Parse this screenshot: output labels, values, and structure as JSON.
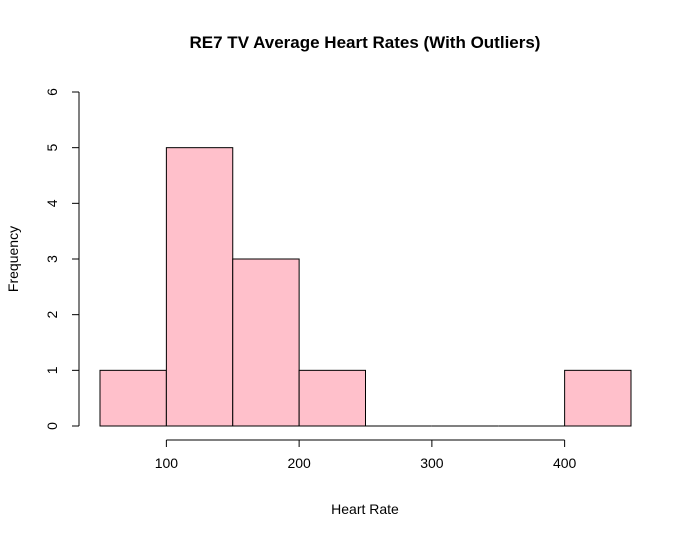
{
  "chart_data": {
    "type": "bar",
    "title": "RE7 TV Average Heart Rates (With Outliers)",
    "xlabel": "Heart Rate",
    "ylabel": "Frequency",
    "bins": [
      {
        "start": 50,
        "end": 100,
        "count": 1
      },
      {
        "start": 100,
        "end": 150,
        "count": 5
      },
      {
        "start": 150,
        "end": 200,
        "count": 3
      },
      {
        "start": 200,
        "end": 250,
        "count": 1
      },
      {
        "start": 250,
        "end": 300,
        "count": 0
      },
      {
        "start": 300,
        "end": 350,
        "count": 0
      },
      {
        "start": 350,
        "end": 400,
        "count": 0
      },
      {
        "start": 400,
        "end": 450,
        "count": 1
      }
    ],
    "xticks": [
      100,
      200,
      300,
      400
    ],
    "yticks": [
      0,
      1,
      2,
      3,
      4,
      5,
      6
    ],
    "xlim": [
      50,
      450
    ],
    "ylim": [
      0,
      6
    ],
    "bar_color": "#FFC0CB",
    "grid": false,
    "legend": "none"
  }
}
